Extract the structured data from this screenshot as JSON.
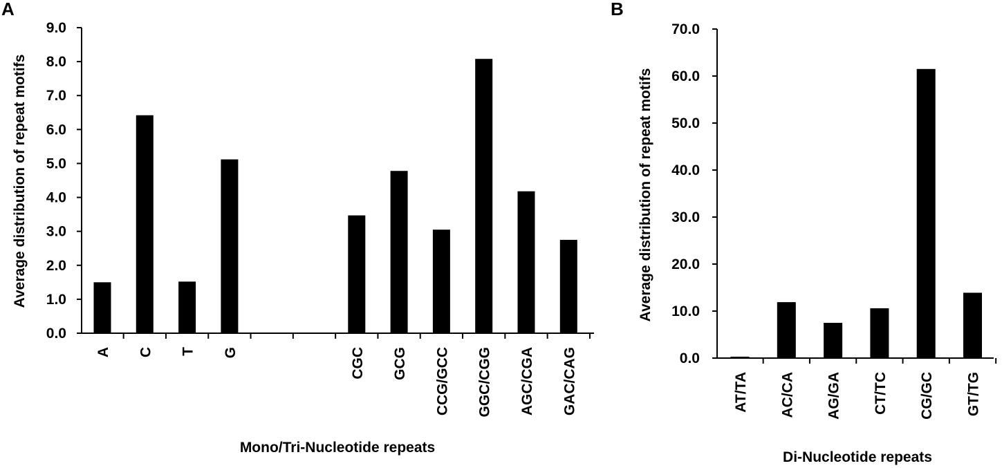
{
  "chart_data": [
    {
      "panel_label": "A",
      "type": "bar",
      "categories": [
        "A",
        "C",
        "T",
        "G",
        "",
        "",
        "CGC",
        "GCG",
        "CCG/GCC",
        "GGC/CGG",
        "AGC/CGA",
        "GAC/CAG"
      ],
      "values": [
        1.5,
        6.42,
        1.52,
        5.12,
        null,
        null,
        3.47,
        4.78,
        3.05,
        8.08,
        4.18,
        2.75
      ],
      "ylim": [
        0,
        9.0
      ],
      "yticks": [
        "0.0",
        "1.0",
        "2.0",
        "3.0",
        "4.0",
        "5.0",
        "6.0",
        "7.0",
        "8.0",
        "9.0"
      ],
      "ylabel": "Average distribution of repeat motifs",
      "xlabel": "Mono/Tri-Nucleotide repeats",
      "bar_color": "#000000",
      "grid": false
    },
    {
      "panel_label": "B",
      "type": "bar",
      "categories": [
        "AT/TA",
        "AC/CA",
        "AG/GA",
        "CT/TC",
        "CG/GC",
        "GT/TG"
      ],
      "values": [
        0.3,
        11.9,
        7.5,
        10.6,
        61.5,
        13.9
      ],
      "ylim": [
        0,
        70.0
      ],
      "yticks": [
        "0.0",
        "10.0",
        "20.0",
        "30.0",
        "40.0",
        "50.0",
        "60.0",
        "70.0"
      ],
      "ylabel": "Average distribution of repeat motifs",
      "xlabel": "Di-Nucleotide repeats",
      "bar_color": "#000000",
      "grid": false
    }
  ]
}
